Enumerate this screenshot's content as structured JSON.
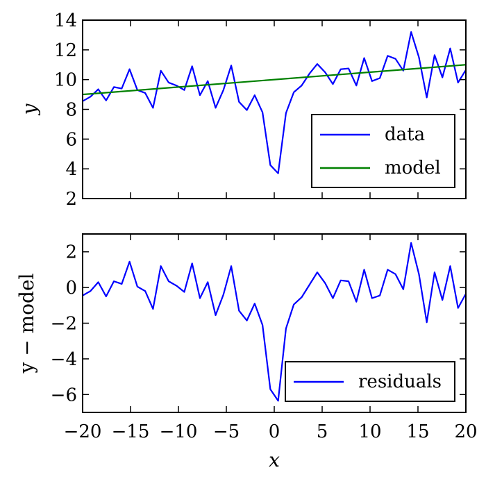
{
  "chart_data": [
    {
      "type": "line",
      "xlim": [
        -20,
        20
      ],
      "ylim": [
        2,
        14
      ],
      "xticks": [
        "-20",
        "-15",
        "-10",
        "-5",
        "0",
        "5",
        "10",
        "15",
        "20"
      ],
      "yticks": [
        "2",
        "4",
        "6",
        "8",
        "10",
        "12",
        "14"
      ],
      "show_x_tick_labels": false,
      "xlabel": "",
      "ylabel": "y",
      "legend_position": "lower-right",
      "series": [
        {
          "name": "data",
          "color": "#0000ff",
          "x": [
            -20.0,
            -19.184,
            -18.367,
            -17.551,
            -16.735,
            -15.918,
            -15.102,
            -14.286,
            -13.469,
            -12.653,
            -11.837,
            -11.02,
            -10.204,
            -9.388,
            -8.571,
            -7.755,
            -6.939,
            -6.122,
            -5.306,
            -4.49,
            -3.673,
            -2.857,
            -2.041,
            -1.224,
            -0.408,
            0.408,
            1.224,
            2.041,
            2.857,
            3.673,
            4.49,
            5.306,
            6.122,
            6.939,
            7.755,
            8.571,
            9.388,
            10.204,
            11.02,
            11.837,
            12.653,
            13.469,
            14.286,
            15.102,
            15.918,
            16.735,
            17.551,
            18.367,
            19.184,
            20.0
          ],
          "y": [
            8.55,
            8.85,
            9.35,
            8.6,
            9.5,
            9.4,
            10.7,
            9.3,
            9.1,
            8.1,
            10.6,
            9.8,
            9.6,
            9.3,
            10.9,
            8.95,
            9.9,
            8.1,
            9.3,
            10.95,
            8.5,
            7.95,
            8.95,
            7.8,
            4.25,
            3.7,
            7.75,
            9.15,
            9.6,
            10.4,
            11.05,
            10.5,
            9.7,
            10.7,
            10.75,
            9.6,
            11.45,
            9.9,
            10.1,
            11.6,
            11.4,
            10.6,
            13.2,
            11.5,
            8.8,
            11.65,
            10.15,
            12.1,
            9.8,
            10.65
          ]
        },
        {
          "name": "model",
          "color": "#008000",
          "x": [
            -20,
            20
          ],
          "y": [
            9.0,
            11.0
          ]
        }
      ]
    },
    {
      "type": "line",
      "xlim": [
        -20,
        20
      ],
      "ylim": [
        -7,
        3
      ],
      "xticks": [
        "-20",
        "-15",
        "-10",
        "-5",
        "0",
        "5",
        "10",
        "15",
        "20"
      ],
      "yticks": [
        "-6",
        "-4",
        "-2",
        "0",
        "2"
      ],
      "show_x_tick_labels": true,
      "xlabel": "x",
      "ylabel": "y − model",
      "legend_position": "lower-right",
      "series": [
        {
          "name": "residuals",
          "color": "#0000ff",
          "x": [
            -20.0,
            -19.184,
            -18.367,
            -17.551,
            -16.735,
            -15.918,
            -15.102,
            -14.286,
            -13.469,
            -12.653,
            -11.837,
            -11.02,
            -10.204,
            -9.388,
            -8.571,
            -7.755,
            -6.939,
            -6.122,
            -5.306,
            -4.49,
            -3.673,
            -2.857,
            -2.041,
            -1.224,
            -0.408,
            0.408,
            1.224,
            2.041,
            2.857,
            3.673,
            4.49,
            5.306,
            6.122,
            6.939,
            7.755,
            8.571,
            9.388,
            10.204,
            11.02,
            11.837,
            12.653,
            13.469,
            14.286,
            15.102,
            15.918,
            16.735,
            17.551,
            18.367,
            19.184,
            20.0
          ],
          "y": [
            -0.45,
            -0.2,
            0.3,
            -0.5,
            0.35,
            0.2,
            1.45,
            0.05,
            -0.2,
            -1.2,
            1.2,
            0.35,
            0.1,
            -0.25,
            1.35,
            -0.6,
            0.3,
            -1.55,
            -0.4,
            1.2,
            -1.3,
            -1.85,
            -0.9,
            -2.1,
            -5.7,
            -6.35,
            -2.3,
            -0.95,
            -0.55,
            0.15,
            0.85,
            0.25,
            -0.6,
            0.4,
            0.35,
            -0.8,
            1.0,
            -0.6,
            -0.45,
            1.0,
            0.75,
            -0.1,
            2.5,
            0.75,
            -1.95,
            0.85,
            -0.7,
            1.2,
            -1.15,
            -0.35
          ]
        }
      ]
    }
  ]
}
